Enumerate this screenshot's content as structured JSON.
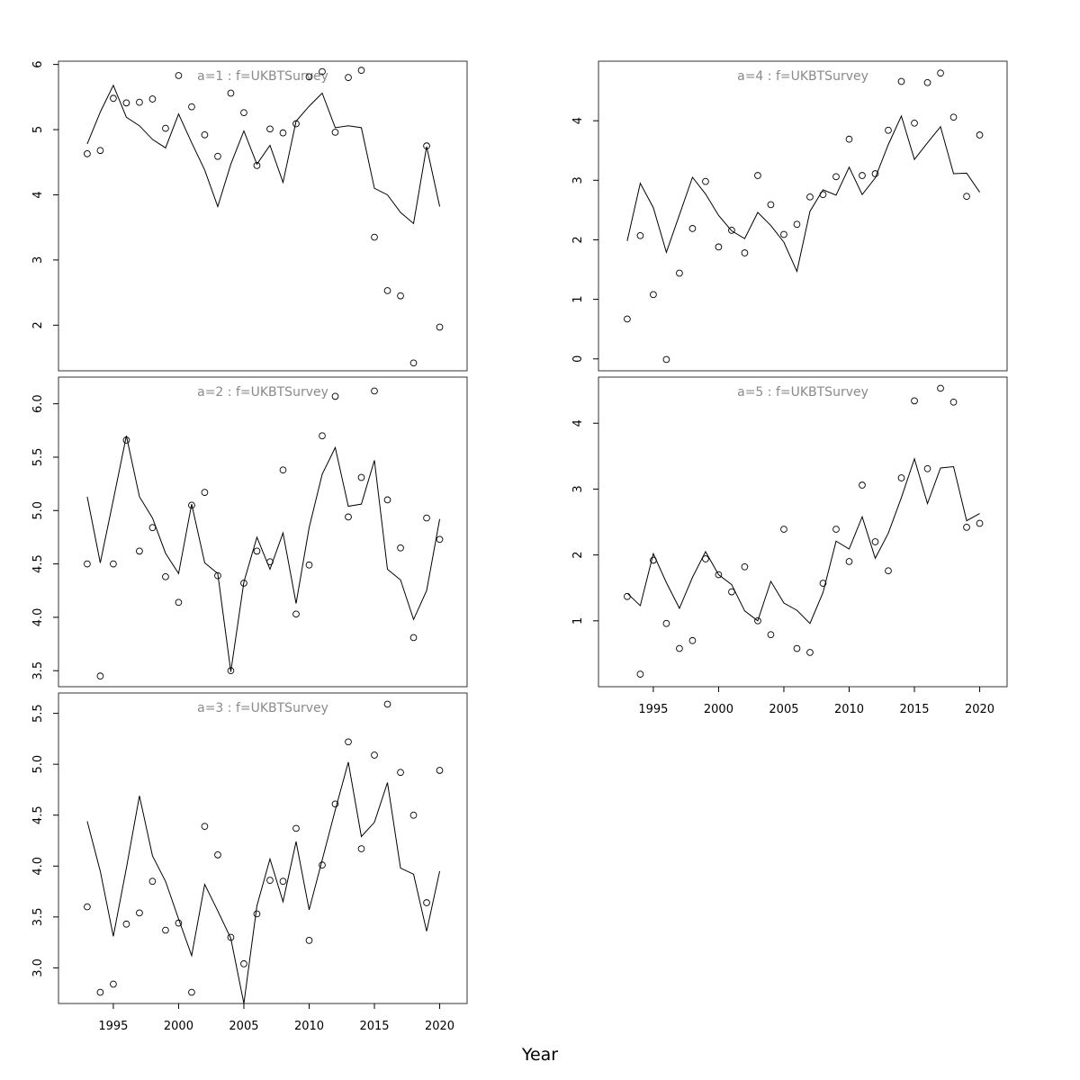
{
  "chart_data": {
    "type": "scatter",
    "xlabel": "Year",
    "x": [
      1993,
      1994,
      1995,
      1996,
      1997,
      1998,
      1999,
      2000,
      2001,
      2002,
      2003,
      2004,
      2005,
      2006,
      2007,
      2008,
      2009,
      2010,
      2011,
      2012,
      2013,
      2014,
      2015,
      2016,
      2017,
      2018,
      2019,
      2020
    ],
    "xticks": [
      1995,
      2000,
      2005,
      2010,
      2015,
      2020
    ],
    "panels": [
      {
        "title": "a=1  :  f=UKBTSurvey",
        "ylim": [
          1.3,
          6.05
        ],
        "yticks": [
          2,
          3,
          4,
          5,
          6
        ],
        "series": [
          {
            "kind": "points",
            "values": [
              4.63,
              4.68,
              5.48,
              5.41,
              5.42,
              5.47,
              5.02,
              5.83,
              5.35,
              4.92,
              4.59,
              5.56,
              5.26,
              4.45,
              5.01,
              4.95,
              5.09,
              5.81,
              5.89,
              4.96,
              5.8,
              5.91,
              3.35,
              2.53,
              2.45,
              1.42,
              4.75,
              1.97
            ]
          },
          {
            "kind": "line",
            "values": [
              4.78,
              5.27,
              5.68,
              5.19,
              5.06,
              4.85,
              4.72,
              5.24,
              4.8,
              4.38,
              3.82,
              4.47,
              4.98,
              4.47,
              4.76,
              4.19,
              5.13,
              5.36,
              5.56,
              5.03,
              5.06,
              5.03,
              4.1,
              4.0,
              3.73,
              3.56,
              4.74,
              3.82
            ]
          }
        ]
      },
      {
        "title": "a=2  :  f=UKBTSurvey",
        "ylim": [
          3.35,
          6.25
        ],
        "yticks": [
          3.5,
          4.0,
          4.5,
          5.0,
          5.5,
          6.0
        ],
        "series": [
          {
            "kind": "points",
            "values": [
              4.5,
              3.45,
              4.5,
              5.66,
              4.62,
              4.84,
              4.38,
              4.14,
              5.05,
              5.17,
              4.39,
              3.5,
              4.32,
              4.62,
              4.52,
              5.38,
              4.03,
              4.49,
              5.7,
              6.07,
              4.94,
              5.31,
              6.12,
              5.1,
              4.65,
              3.81,
              4.93,
              4.73
            ]
          },
          {
            "kind": "line",
            "values": [
              5.13,
              4.51,
              5.1,
              5.7,
              5.13,
              4.93,
              4.6,
              4.41,
              5.06,
              4.51,
              4.41,
              3.49,
              4.33,
              4.75,
              4.45,
              4.79,
              4.13,
              4.84,
              5.34,
              5.59,
              5.04,
              5.06,
              5.47,
              4.45,
              4.35,
              3.98,
              4.25,
              4.92
            ]
          }
        ]
      },
      {
        "title": "a=3  :  f=UKBTSurvey",
        "ylim": [
          2.65,
          5.7
        ],
        "yticks": [
          3.0,
          3.5,
          4.0,
          4.5,
          5.0,
          5.5
        ],
        "series": [
          {
            "kind": "points",
            "values": [
              3.6,
              2.76,
              2.84,
              3.43,
              3.54,
              3.85,
              3.37,
              3.44,
              2.76,
              4.39,
              4.11,
              3.3,
              3.04,
              3.53,
              3.86,
              3.85,
              4.37,
              3.27,
              4.01,
              4.61,
              5.22,
              4.17,
              5.09,
              5.59,
              4.92,
              4.5,
              3.64,
              4.94
            ]
          },
          {
            "kind": "line",
            "values": [
              4.44,
              3.95,
              3.31,
              3.98,
              4.69,
              4.1,
              3.85,
              3.48,
              3.12,
              3.82,
              3.56,
              3.29,
              2.65,
              3.61,
              4.07,
              3.65,
              4.24,
              3.57,
              4.06,
              4.55,
              5.02,
              4.29,
              4.43,
              4.82,
              3.98,
              3.92,
              3.36,
              3.95
            ]
          }
        ]
      },
      {
        "title": "a=4  :  f=UKBTSurvey",
        "ylim": [
          -0.2,
          5.0
        ],
        "yticks": [
          0,
          1,
          2,
          3,
          4
        ],
        "series": [
          {
            "kind": "points",
            "values": [
              0.67,
              2.07,
              1.08,
              -0.01,
              1.44,
              2.19,
              2.98,
              1.88,
              2.16,
              1.78,
              3.08,
              2.59,
              2.09,
              2.26,
              2.72,
              2.76,
              3.06,
              3.69,
              3.08,
              3.11,
              3.84,
              4.66,
              3.96,
              4.64,
              4.8,
              4.06,
              2.73,
              3.76
            ]
          },
          {
            "kind": "line",
            "values": [
              1.98,
              2.95,
              2.54,
              1.79,
              2.42,
              3.05,
              2.77,
              2.41,
              2.15,
              2.02,
              2.46,
              2.24,
              1.96,
              1.47,
              2.48,
              2.84,
              2.75,
              3.22,
              2.76,
              3.04,
              3.6,
              4.08,
              3.35,
              3.63,
              3.9,
              3.11,
              3.12,
              2.8
            ]
          }
        ]
      },
      {
        "title": "a=5  :  f=UKBTSurvey",
        "ylim": [
          0.0,
          4.7
        ],
        "yticks": [
          1,
          2,
          3,
          4
        ],
        "series": [
          {
            "kind": "points",
            "values": [
              1.37,
              0.19,
              1.92,
              0.96,
              0.58,
              0.7,
              1.94,
              1.7,
              1.44,
              1.82,
              1.0,
              0.79,
              2.39,
              0.58,
              0.52,
              1.57,
              2.39,
              1.9,
              3.06,
              2.2,
              1.76,
              3.17,
              4.34,
              3.31,
              4.53,
              4.32,
              2.42,
              2.48
            ]
          },
          {
            "kind": "line",
            "values": [
              1.42,
              1.23,
              2.02,
              1.58,
              1.19,
              1.66,
              2.05,
              1.7,
              1.55,
              1.15,
              1.0,
              1.6,
              1.27,
              1.16,
              0.96,
              1.43,
              2.21,
              2.09,
              2.58,
              1.95,
              2.33,
              2.87,
              3.46,
              2.78,
              3.32,
              3.34,
              2.52,
              2.63
            ]
          }
        ]
      }
    ]
  }
}
